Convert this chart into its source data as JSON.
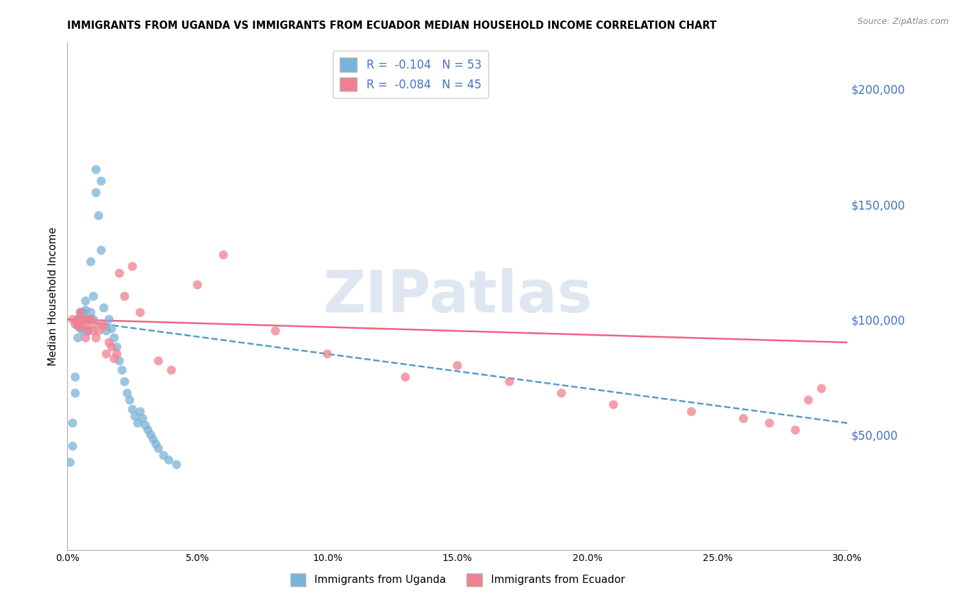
{
  "title": "IMMIGRANTS FROM UGANDA VS IMMIGRANTS FROM ECUADOR MEDIAN HOUSEHOLD INCOME CORRELATION CHART",
  "source": "Source: ZipAtlas.com",
  "ylabel": "Median Household Income",
  "yticks": [
    0,
    50000,
    100000,
    150000,
    200000
  ],
  "ytick_labels": [
    "",
    "$50,000",
    "$100,000",
    "$150,000",
    "$200,000"
  ],
  "xlim": [
    0.0,
    0.3
  ],
  "ylim": [
    0,
    220000
  ],
  "xticks": [
    0.0,
    0.05,
    0.1,
    0.15,
    0.2,
    0.25,
    0.3
  ],
  "xtick_labels": [
    "0.0%",
    "5.0%",
    "10.0%",
    "15.0%",
    "20.0%",
    "25.0%",
    "30.0%"
  ],
  "legend_entry1": "R =  -0.104   N = 53",
  "legend_entry2": "R =  -0.084   N = 45",
  "legend_label1": "Immigrants from Uganda",
  "legend_label2": "Immigrants from Ecuador",
  "uganda_color": "#7ab3d9",
  "ecuador_color": "#f08090",
  "trendline_uganda_color": "#5599cc",
  "trendline_ecuador_color": "#f06080",
  "watermark": "ZIPatlas",
  "watermark_color": "#c8d8e8",
  "uganda_x": [
    0.001,
    0.002,
    0.002,
    0.003,
    0.003,
    0.004,
    0.004,
    0.004,
    0.005,
    0.005,
    0.005,
    0.006,
    0.006,
    0.006,
    0.007,
    0.007,
    0.007,
    0.008,
    0.008,
    0.009,
    0.009,
    0.01,
    0.01,
    0.011,
    0.011,
    0.012,
    0.013,
    0.013,
    0.014,
    0.015,
    0.016,
    0.017,
    0.018,
    0.019,
    0.02,
    0.021,
    0.022,
    0.023,
    0.024,
    0.025,
    0.026,
    0.027,
    0.028,
    0.029,
    0.03,
    0.031,
    0.032,
    0.033,
    0.034,
    0.035,
    0.037,
    0.039,
    0.042
  ],
  "uganda_y": [
    38000,
    45000,
    55000,
    68000,
    75000,
    92000,
    98000,
    100000,
    96000,
    100000,
    103000,
    95000,
    100000,
    103000,
    100000,
    104000,
    108000,
    95000,
    100000,
    103000,
    125000,
    100000,
    110000,
    155000,
    165000,
    145000,
    160000,
    130000,
    105000,
    95000,
    100000,
    96000,
    92000,
    88000,
    82000,
    78000,
    73000,
    68000,
    65000,
    61000,
    58000,
    55000,
    60000,
    57000,
    54000,
    52000,
    50000,
    48000,
    46000,
    44000,
    41000,
    39000,
    37000
  ],
  "ecuador_x": [
    0.002,
    0.003,
    0.004,
    0.004,
    0.005,
    0.005,
    0.006,
    0.006,
    0.007,
    0.007,
    0.008,
    0.008,
    0.009,
    0.01,
    0.01,
    0.011,
    0.012,
    0.013,
    0.014,
    0.015,
    0.016,
    0.017,
    0.018,
    0.019,
    0.02,
    0.022,
    0.025,
    0.028,
    0.035,
    0.04,
    0.05,
    0.06,
    0.08,
    0.1,
    0.13,
    0.15,
    0.17,
    0.19,
    0.21,
    0.24,
    0.26,
    0.27,
    0.28,
    0.285,
    0.29
  ],
  "ecuador_y": [
    100000,
    98000,
    97000,
    100000,
    100000,
    103000,
    97000,
    100000,
    92000,
    97000,
    95000,
    100000,
    100000,
    95000,
    98000,
    92000,
    95000,
    98000,
    97000,
    85000,
    90000,
    88000,
    83000,
    85000,
    120000,
    110000,
    123000,
    103000,
    82000,
    78000,
    115000,
    128000,
    95000,
    85000,
    75000,
    80000,
    73000,
    68000,
    63000,
    60000,
    57000,
    55000,
    52000,
    65000,
    70000
  ]
}
